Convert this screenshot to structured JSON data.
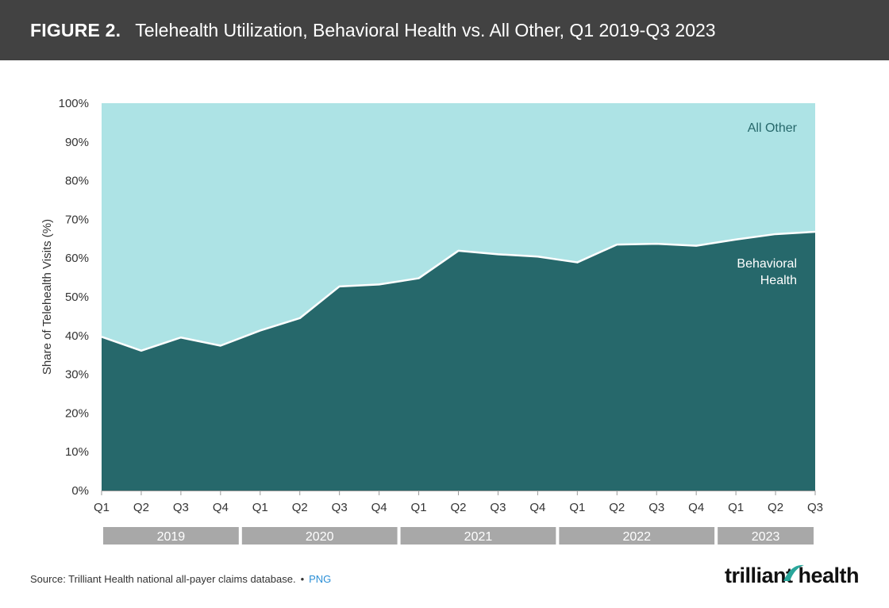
{
  "header": {
    "figure_label": "FIGURE 2.",
    "title": "Telehealth Utilization, Behavioral Health vs. All Other, Q1 2019-Q3 2023"
  },
  "chart_data": {
    "type": "area",
    "stacked": true,
    "ylabel": "Share of Telehealth Visits (%)",
    "ylim": [
      0,
      100
    ],
    "yticks": [
      "0%",
      "10%",
      "20%",
      "30%",
      "40%",
      "50%",
      "60%",
      "70%",
      "80%",
      "90%",
      "100%"
    ],
    "categories": [
      "Q1",
      "Q2",
      "Q3",
      "Q4",
      "Q1",
      "Q2",
      "Q3",
      "Q4",
      "Q1",
      "Q2",
      "Q3",
      "Q4",
      "Q1",
      "Q2",
      "Q3",
      "Q4",
      "Q1",
      "Q2",
      "Q3"
    ],
    "years": [
      {
        "label": "2019",
        "quarters": 4
      },
      {
        "label": "2020",
        "quarters": 4
      },
      {
        "label": "2021",
        "quarters": 4
      },
      {
        "label": "2022",
        "quarters": 4
      },
      {
        "label": "2023",
        "quarters": 3
      }
    ],
    "series": [
      {
        "name": "Behavioral Health",
        "label_lines": [
          "Behavioral",
          "Health"
        ],
        "color": "#26686b",
        "values": [
          39.7,
          36.1,
          39.5,
          37.4,
          41.3,
          44.5,
          52.7,
          53.2,
          54.8,
          61.9,
          61.0,
          60.4,
          58.9,
          63.5,
          63.7,
          63.2,
          64.8,
          66.2,
          66.8
        ]
      },
      {
        "name": "All Other",
        "label_lines": [
          "All Other"
        ],
        "color": "#ade3e5",
        "values": [
          60.3,
          63.9,
          60.5,
          62.6,
          58.7,
          55.5,
          47.3,
          46.8,
          45.2,
          38.1,
          39.0,
          39.6,
          41.1,
          36.5,
          36.3,
          36.8,
          35.2,
          33.8,
          33.2
        ]
      }
    ],
    "year_band_color": "#a8a8a8"
  },
  "footer": {
    "source": "Source: Trilliant Health national all-payer claims database.",
    "separator": "•",
    "link": "PNG"
  },
  "logo": {
    "text": "trilliant health"
  }
}
